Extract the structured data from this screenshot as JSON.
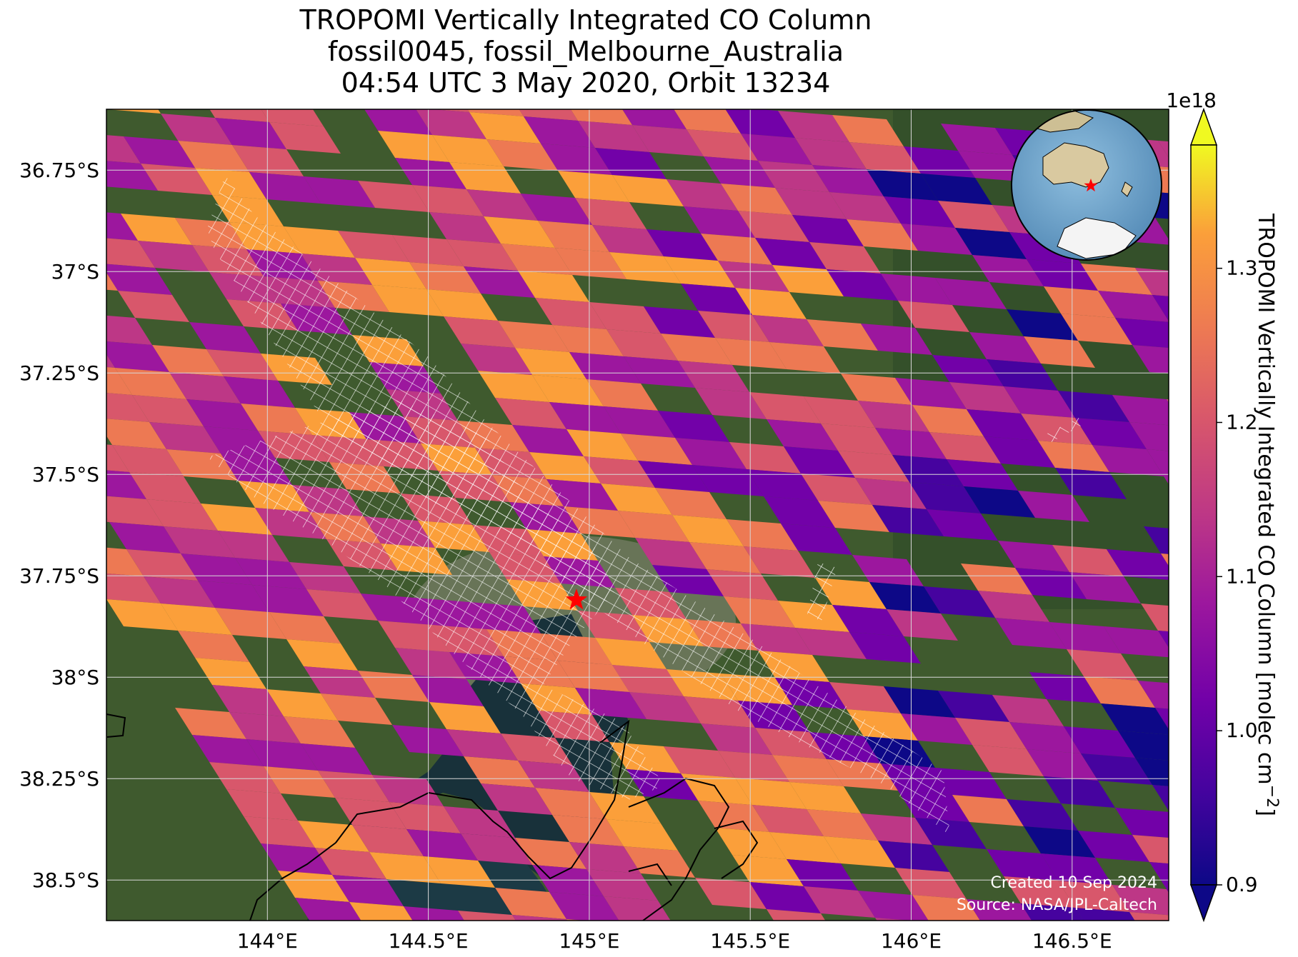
{
  "title": {
    "line1": "TROPOMI Vertically Integrated CO Column",
    "line2": "fossil0045, fossil_Melbourne_Australia",
    "line3": "04:54 UTC 3 May 2020, Orbit 13234"
  },
  "map": {
    "lon_range": [
      143.5,
      146.8
    ],
    "lat_range": [
      -38.6,
      -36.6
    ],
    "lon_ticks": [
      {
        "value": 144.0,
        "label": "144°E"
      },
      {
        "value": 144.5,
        "label": "144.5°E"
      },
      {
        "value": 145.0,
        "label": "145°E"
      },
      {
        "value": 145.5,
        "label": "145.5°E"
      },
      {
        "value": 146.0,
        "label": "146°E"
      },
      {
        "value": 146.5,
        "label": "146.5°E"
      }
    ],
    "lat_ticks": [
      {
        "value": -36.75,
        "label": "36.75°S"
      },
      {
        "value": -37.0,
        "label": "37°S"
      },
      {
        "value": -37.25,
        "label": "37.25°S"
      },
      {
        "value": -37.5,
        "label": "37.5°S"
      },
      {
        "value": -37.75,
        "label": "37.75°S"
      },
      {
        "value": -38.0,
        "label": "38°S"
      },
      {
        "value": -38.25,
        "label": "38.25°S"
      },
      {
        "value": -38.5,
        "label": "38.5°S"
      }
    ],
    "grid": true,
    "basemap": "satellite imagery",
    "target_marker": {
      "lon": 144.96,
      "lat": -37.81,
      "symbol": "red-star",
      "color": "#ff0000"
    },
    "overlay": "white hatched cells outlining city / plume footprint",
    "colormap": "plasma"
  },
  "colorbar": {
    "label": "TROPOMI Vertically Integrated CO Column [molec cm",
    "label_superscript": "−2",
    "label_close": "]",
    "scale_text": "1e18",
    "range": [
      0.9,
      1.38
    ],
    "extend": "both",
    "ticks": [
      {
        "value": 0.9,
        "label": "0.9"
      },
      {
        "value": 1.0,
        "label": "1.0"
      },
      {
        "value": 1.1,
        "label": "1.1"
      },
      {
        "value": 1.2,
        "label": "1.2"
      },
      {
        "value": 1.3,
        "label": "1.3"
      }
    ]
  },
  "inset": {
    "type": "globe",
    "marker": "red-star"
  },
  "credits": {
    "created": "Created 10 Sep 2024",
    "source": "Source: NASA/JPL-Caltech"
  }
}
